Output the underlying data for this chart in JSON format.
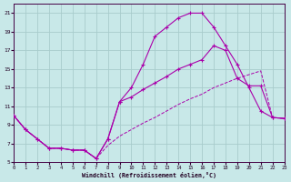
{
  "xlabel": "Windchill (Refroidissement éolien,°C)",
  "bg_color": "#c8e8e8",
  "grid_color": "#a8cccc",
  "line_color": "#aa00aa",
  "xlim": [
    0,
    23
  ],
  "ylim": [
    5,
    22
  ],
  "xticks": [
    0,
    1,
    2,
    3,
    4,
    5,
    6,
    7,
    8,
    9,
    10,
    11,
    12,
    13,
    14,
    15,
    16,
    17,
    18,
    19,
    20,
    21,
    22,
    23
  ],
  "yticks": [
    5,
    7,
    9,
    11,
    13,
    15,
    17,
    19,
    21
  ],
  "curve1_x": [
    0,
    1,
    2,
    3,
    4,
    5,
    6,
    7,
    8,
    9,
    10,
    11,
    12,
    13,
    14,
    15,
    16,
    17,
    18,
    19,
    20,
    21,
    22,
    23
  ],
  "curve1_y": [
    10,
    8.5,
    7.5,
    6.5,
    6.5,
    6.3,
    6.3,
    5.4,
    7.5,
    11.5,
    13.0,
    15.5,
    18.5,
    19.5,
    20.5,
    21.0,
    21.0,
    19.5,
    17.5,
    15.5,
    13.0,
    10.5,
    9.8,
    9.7
  ],
  "curve2_x": [
    0,
    1,
    2,
    3,
    4,
    5,
    6,
    7,
    8,
    9,
    10,
    11,
    12,
    13,
    14,
    15,
    16,
    17,
    18,
    19,
    20,
    21,
    22,
    23
  ],
  "curve2_y": [
    10,
    8.5,
    7.5,
    6.5,
    6.5,
    6.3,
    6.3,
    5.4,
    7.5,
    11.5,
    12.0,
    12.8,
    13.5,
    14.2,
    15.0,
    15.5,
    16.0,
    17.5,
    17.0,
    14.0,
    13.2,
    13.2,
    9.8,
    9.7
  ],
  "curve3_x": [
    0,
    1,
    2,
    3,
    4,
    5,
    6,
    7,
    8,
    9,
    10,
    11,
    12,
    13,
    14,
    15,
    16,
    17,
    18,
    19,
    20,
    21,
    22,
    23
  ],
  "curve3_y": [
    10,
    8.5,
    7.5,
    6.5,
    6.5,
    6.3,
    6.3,
    5.4,
    6.8,
    7.8,
    8.5,
    9.2,
    9.8,
    10.5,
    11.2,
    11.8,
    12.3,
    13.0,
    13.5,
    14.0,
    14.4,
    14.8,
    9.8,
    9.7
  ]
}
